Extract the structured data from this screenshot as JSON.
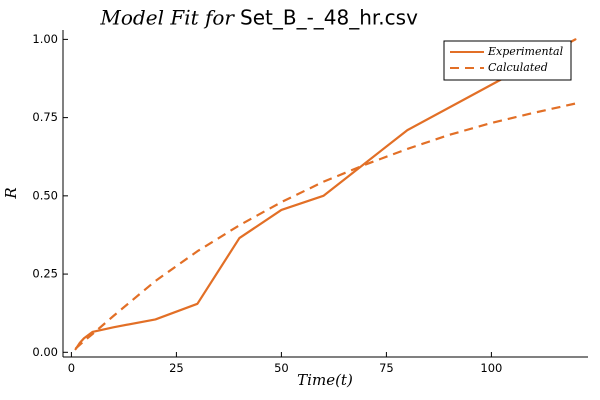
{
  "chart_data": {
    "type": "line",
    "title_math": "Model Fit for",
    "title_text": "Set_B_-_48_hr.csv",
    "xlabel": "Time(t)",
    "ylabel": "R",
    "xlim": [
      -2,
      123
    ],
    "ylim": [
      -0.015,
      1.03
    ],
    "xticks": [
      0,
      25,
      50,
      75,
      100
    ],
    "xtick_labels": [
      "0",
      "25",
      "50",
      "75",
      "100"
    ],
    "yticks": [
      0.0,
      0.25,
      0.5,
      0.75,
      1.0
    ],
    "ytick_labels": [
      "0.00",
      "0.25",
      "0.50",
      "0.75",
      "1.00"
    ],
    "grid": false,
    "legend_position": "top-right",
    "series": [
      {
        "name": "Experimental",
        "style": "solid",
        "color": "#e26f26",
        "x": [
          1,
          2,
          3,
          5,
          10,
          20,
          30,
          40,
          50,
          60,
          80,
          100,
          120
        ],
        "y": [
          0.01,
          0.03,
          0.045,
          0.065,
          0.08,
          0.105,
          0.155,
          0.365,
          0.455,
          0.5,
          0.71,
          0.855,
          1.0
        ]
      },
      {
        "name": "Calculated",
        "style": "dashed",
        "color": "#e26f26",
        "x": [
          1,
          2,
          3,
          5,
          10,
          20,
          30,
          40,
          50,
          60,
          70,
          80,
          90,
          100,
          110,
          120
        ],
        "y": [
          0.012,
          0.024,
          0.036,
          0.058,
          0.116,
          0.228,
          0.323,
          0.406,
          0.48,
          0.545,
          0.6,
          0.65,
          0.695,
          0.733,
          0.765,
          0.795
        ]
      }
    ]
  }
}
